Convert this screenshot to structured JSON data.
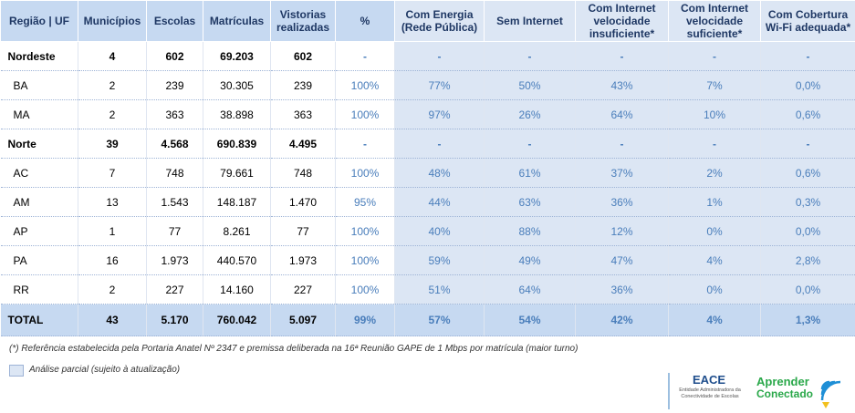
{
  "table": {
    "headers": [
      "Região | UF",
      "Municípios",
      "Escolas",
      "Matrículas",
      "Vistorias realizadas",
      "%",
      "Com Energia (Rede Pública)",
      "Sem Internet",
      "Com Internet velocidade insuficiente*",
      "Com Internet velocidade suficiente*",
      "Com Cobertura Wi-Fi adequada*"
    ],
    "rows": [
      [
        "Nordeste",
        "4",
        "602",
        "69.203",
        "602",
        "-",
        "-",
        "-",
        "-",
        "-",
        "-"
      ],
      [
        "BA",
        "2",
        "239",
        "30.305",
        "239",
        "100%",
        "77%",
        "50%",
        "43%",
        "7%",
        "0,0%"
      ],
      [
        "MA",
        "2",
        "363",
        "38.898",
        "363",
        "100%",
        "97%",
        "26%",
        "64%",
        "10%",
        "0,6%"
      ],
      [
        "Norte",
        "39",
        "4.568",
        "690.839",
        "4.495",
        "-",
        "-",
        "-",
        "-",
        "-",
        "-"
      ],
      [
        "AC",
        "7",
        "748",
        "79.661",
        "748",
        "100%",
        "48%",
        "61%",
        "37%",
        "2%",
        "0,6%"
      ],
      [
        "AM",
        "13",
        "1.543",
        "148.187",
        "1.470",
        "95%",
        "44%",
        "63%",
        "36%",
        "1%",
        "0,3%"
      ],
      [
        "AP",
        "1",
        "77",
        "8.261",
        "77",
        "100%",
        "40%",
        "88%",
        "12%",
        "0%",
        "0,0%"
      ],
      [
        "PA",
        "16",
        "1.973",
        "440.570",
        "1.973",
        "100%",
        "59%",
        "49%",
        "47%",
        "4%",
        "2,8%"
      ],
      [
        "RR",
        "2",
        "227",
        "14.160",
        "227",
        "100%",
        "51%",
        "64%",
        "36%",
        "0%",
        "0,0%"
      ],
      [
        "TOTAL",
        "43",
        "5.170",
        "760.042",
        "5.097",
        "99%",
        "57%",
        "54%",
        "42%",
        "4%",
        "1,3%"
      ]
    ]
  },
  "footnote": "(*) Referência estabelecida pela Portaria Anatel Nº 2347 e premissa deliberada na 16ª Reunião GAPE de 1 Mbps por matrícula (maior turno)",
  "legend": "Análise parcial (sujeito à atualização)",
  "logos": {
    "eace": "EACE",
    "eace_sub": "Entidade Administradora da Conectividade de Escolas",
    "aprender": "Aprender",
    "conectado": "Conectado"
  }
}
